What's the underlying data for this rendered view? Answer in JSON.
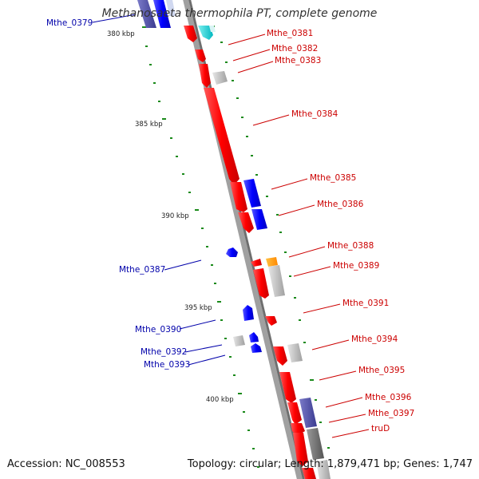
{
  "title": "Methanosaeta thermophila PT, complete genome",
  "footer": {
    "accession": "Accession: NC_008553",
    "summary": "Topology: circular; Length: 1,879,471 bp; Genes: 1,747"
  },
  "colors": {
    "forward_gene": "#ff0000",
    "reverse_gene": "#0000ff",
    "label_forward": "#cc0000",
    "label_reverse": "#0000aa",
    "backbone": "#999999",
    "tick": "#1a8a1a"
  },
  "kbp_ticks": [
    {
      "kbp": 380,
      "label": "380 kbp"
    },
    {
      "kbp": 385,
      "label": "385 kbp"
    },
    {
      "kbp": 390,
      "label": "390 kbp"
    },
    {
      "kbp": 395,
      "label": "395 kbp"
    },
    {
      "kbp": 400,
      "label": "400 kbp"
    }
  ],
  "genes": [
    {
      "label": "Mthe_0379",
      "strand": "reverse"
    },
    {
      "label": "Mthe_0381",
      "strand": "forward"
    },
    {
      "label": "Mthe_0382",
      "strand": "forward"
    },
    {
      "label": "Mthe_0383",
      "strand": "forward"
    },
    {
      "label": "Mthe_0384",
      "strand": "forward"
    },
    {
      "label": "Mthe_0385",
      "strand": "forward"
    },
    {
      "label": "Mthe_0386",
      "strand": "forward"
    },
    {
      "label": "Mthe_0387",
      "strand": "reverse"
    },
    {
      "label": "Mthe_0388",
      "strand": "forward"
    },
    {
      "label": "Mthe_0389",
      "strand": "forward"
    },
    {
      "label": "Mthe_0390",
      "strand": "reverse"
    },
    {
      "label": "Mthe_0391",
      "strand": "forward"
    },
    {
      "label": "Mthe_0392",
      "strand": "reverse"
    },
    {
      "label": "Mthe_0393",
      "strand": "reverse"
    },
    {
      "label": "Mthe_0394",
      "strand": "forward"
    },
    {
      "label": "Mthe_0395",
      "strand": "forward"
    },
    {
      "label": "Mthe_0396",
      "strand": "forward"
    },
    {
      "label": "Mthe_0397",
      "strand": "forward"
    },
    {
      "label": "truD",
      "strand": "forward"
    }
  ]
}
